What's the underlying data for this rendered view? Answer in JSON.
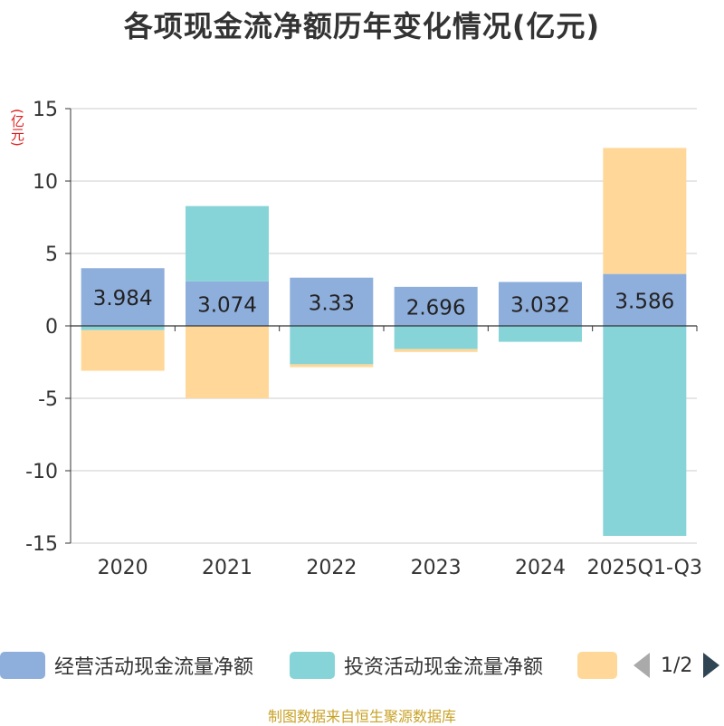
{
  "chart_data": {
    "type": "bar",
    "stacked": true,
    "title": "各项现金流净额历年变化情况(亿元)",
    "unit_label": "(亿元)",
    "categories": [
      "2020",
      "2021",
      "2022",
      "2023",
      "2024",
      "2025Q1-Q3"
    ],
    "ylim": [
      -15,
      15
    ],
    "yticks": [
      15,
      10,
      5,
      0,
      -5,
      -10,
      -15
    ],
    "grid": true,
    "legend_position": "bottom",
    "series": [
      {
        "name": "经营活动现金流量净额",
        "color": "#8eaedc",
        "values": [
          3.984,
          3.074,
          3.33,
          2.696,
          3.032,
          3.586
        ],
        "labels": [
          "3.984",
          "3.074",
          "3.33",
          "2.696",
          "3.032",
          "3.586"
        ]
      },
      {
        "name": "投资活动现金流量净额",
        "color": "#87d4d8",
        "values": [
          -0.3,
          5.2,
          -2.65,
          -1.6,
          -1.1,
          -14.5
        ]
      },
      {
        "name": "",
        "color": "#ffd899",
        "values": [
          -2.8,
          -5.0,
          -0.2,
          -0.2,
          0,
          8.7
        ]
      }
    ]
  },
  "legend": {
    "items": [
      {
        "label": "经营活动现金流量净额",
        "color": "#8eaedc"
      },
      {
        "label": "投资活动现金流量净额",
        "color": "#87d4d8"
      },
      {
        "label": "",
        "color": "#ffd899"
      }
    ],
    "page": "1/2"
  },
  "footer": {
    "source": "制图数据来自恒生聚源数据库"
  }
}
